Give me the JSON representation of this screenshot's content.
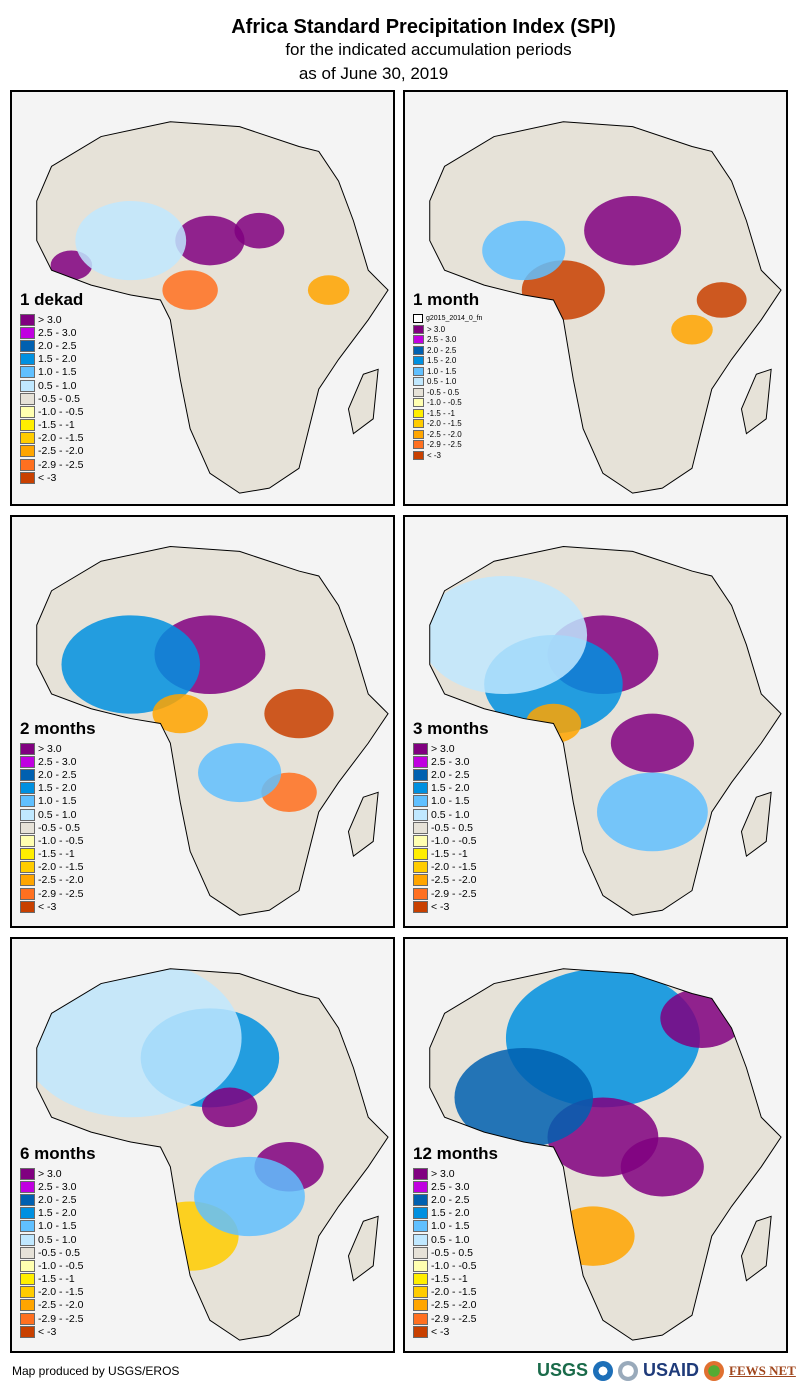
{
  "header": {
    "title": "Africa Standard Precipitation Index (SPI)",
    "subtitle": "for the indicated accumulation periods",
    "date_line": "as of June 30, 2019"
  },
  "legend_classes": [
    {
      "label": "> 3.0",
      "color": "#800080"
    },
    {
      "label": "2.5 - 3.0",
      "color": "#c000e0"
    },
    {
      "label": "2.0 - 2.5",
      "color": "#0060b0"
    },
    {
      "label": "1.5 - 2.0",
      "color": "#0090e0"
    },
    {
      "label": "1.0 - 1.5",
      "color": "#60c0ff"
    },
    {
      "label": "0.5 - 1.0",
      "color": "#c0e8ff"
    },
    {
      "label": "-0.5 - 0.5",
      "color": "#e6e2d8"
    },
    {
      "label": "-1.0 - -0.5",
      "color": "#ffffb0"
    },
    {
      "label": "-1.5 - -1",
      "color": "#ffee00"
    },
    {
      "label": "-2.0 - -1.5",
      "color": "#ffcc00"
    },
    {
      "label": "-2.5 - -2.0",
      "color": "#ffa500"
    },
    {
      "label": "-2.9 - -2.5",
      "color": "#ff7020"
    },
    {
      "label": "< -3",
      "color": "#c84000"
    }
  ],
  "panels": [
    {
      "period": "1 dekad"
    },
    {
      "period": "1 month",
      "extra_legend": "g2015_2014_0_fn"
    },
    {
      "period": "2 months"
    },
    {
      "period": "3 months"
    },
    {
      "period": "6 months"
    },
    {
      "period": "12 months"
    }
  ],
  "footer": {
    "credit": "Map produced by USGS/EROS",
    "logos": [
      "USGS",
      "NOAA",
      "USAID",
      "FEWS NET"
    ]
  }
}
